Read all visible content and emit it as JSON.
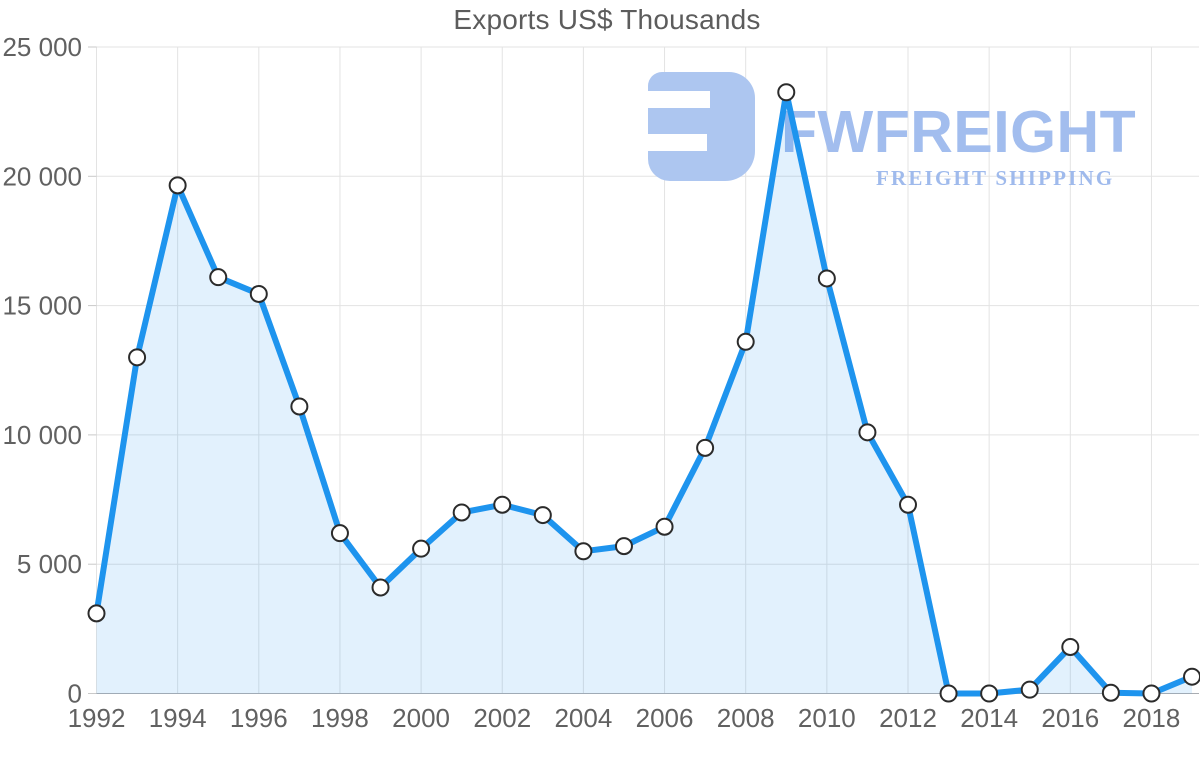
{
  "chart_data": {
    "type": "area",
    "title": "Exports US$ Thousands",
    "xlabel": "",
    "ylabel": "",
    "series_name": "Exports US$ Thousands",
    "x": [
      1992,
      1993,
      1994,
      1995,
      1996,
      1997,
      1998,
      1999,
      2000,
      2001,
      2002,
      2003,
      2004,
      2005,
      2006,
      2007,
      2008,
      2009,
      2010,
      2011,
      2012,
      2013,
      2014,
      2015,
      2016,
      2017,
      2018,
      2019
    ],
    "values": [
      3100,
      13000,
      19650,
      16100,
      15450,
      11100,
      6200,
      4100,
      5600,
      7000,
      7300,
      6900,
      5500,
      5700,
      6450,
      9500,
      13600,
      23250,
      16050,
      10100,
      7300,
      0,
      0,
      150,
      1800,
      30,
      0,
      650
    ],
    "xlim": [
      1992,
      2019
    ],
    "ylim": [
      0,
      25000
    ],
    "grid": true,
    "legend": false,
    "y_ticks": {
      "values": [
        0,
        5000,
        10000,
        15000,
        20000,
        25000
      ],
      "labels": [
        "0",
        "5 000",
        "10 000",
        "15 000",
        "20 000",
        "25 000"
      ]
    },
    "x_ticks": {
      "values": [
        1992,
        1994,
        1996,
        1998,
        2000,
        2002,
        2004,
        2006,
        2008,
        2010,
        2012,
        2014,
        2016,
        2018
      ],
      "labels": [
        "1992",
        "1994",
        "1996",
        "1998",
        "2000",
        "2002",
        "2004",
        "2006",
        "2008",
        "2010",
        "2012",
        "2014",
        "2016",
        "2018"
      ]
    },
    "colors": {
      "line": "#1e94ee",
      "fill": "rgba(30,148,238,0.13)",
      "marker_fill": "#ffffff",
      "marker_stroke": "#2b2b2b",
      "grid": "#e3e3e3",
      "axis": "#a9adb2",
      "tick": "#c9c9c9",
      "label": "#616161",
      "title": "#5c5c5c"
    }
  },
  "watermark": {
    "brand": "FWFREIGHT",
    "tagline": "FREIGHT SHIPPING",
    "logo_icon": "mirrored-f-mark",
    "logo_color": "#adc6f0",
    "brand_color": "#a2bdee",
    "tagline_color": "#9fbaec"
  }
}
